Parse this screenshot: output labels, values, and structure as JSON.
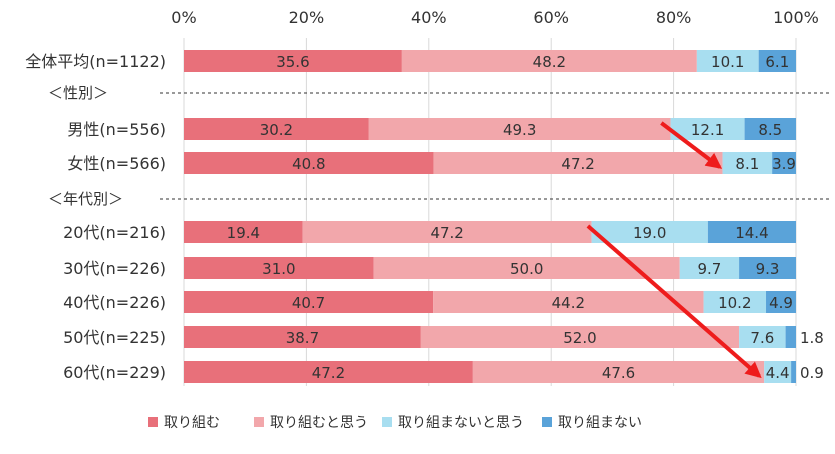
{
  "chart_data": {
    "type": "bar",
    "orientation": "horizontal",
    "stacked": true,
    "percent": true,
    "xlim": [
      0,
      100
    ],
    "x_ticks": [
      "0%",
      "20%",
      "40%",
      "60%",
      "80%",
      "100%"
    ],
    "grid": true,
    "legend_position": "bottom",
    "rows": [
      {
        "label": "全体平均(n=1122)",
        "values": [
          35.6,
          48.2,
          10.1,
          6.1
        ]
      },
      {
        "group_label": "＜性別＞"
      },
      {
        "label": "男性(n=556)",
        "values": [
          30.2,
          49.3,
          12.1,
          8.5
        ]
      },
      {
        "label": "女性(n=566)",
        "values": [
          40.8,
          47.2,
          8.1,
          3.9
        ]
      },
      {
        "group_label": "＜年代別＞"
      },
      {
        "label": "20代(n=216)",
        "values": [
          19.4,
          47.2,
          19.0,
          14.4
        ]
      },
      {
        "label": "30代(n=226)",
        "values": [
          31.0,
          50.0,
          9.7,
          9.3
        ]
      },
      {
        "label": "40代(n=226)",
        "values": [
          40.7,
          44.2,
          10.2,
          4.9
        ]
      },
      {
        "label": "50代(n=225)",
        "values": [
          38.7,
          52.0,
          7.6,
          1.8
        ]
      },
      {
        "label": "60代(n=229)",
        "values": [
          47.2,
          47.6,
          4.4,
          0.9
        ]
      }
    ],
    "series": [
      {
        "name": "取り組む",
        "color": "#e8707a"
      },
      {
        "name": "取り組むと思う",
        "color": "#f2a7ab"
      },
      {
        "name": "取り組まないと思う",
        "color": "#a8def0"
      },
      {
        "name": "取り組まない",
        "color": "#5aa3d9"
      }
    ],
    "annotations": [
      {
        "type": "arrow",
        "color": "#ee1c1c",
        "from_row": "男性(n=556)",
        "to_row": "女性(n=566)",
        "from_x": 78,
        "to_x": 87.5
      },
      {
        "type": "arrow",
        "color": "#ee1c1c",
        "from_row": "20代(n=216)",
        "to_row": "60代(n=229)",
        "from_x": 66,
        "to_x": 94
      }
    ]
  }
}
